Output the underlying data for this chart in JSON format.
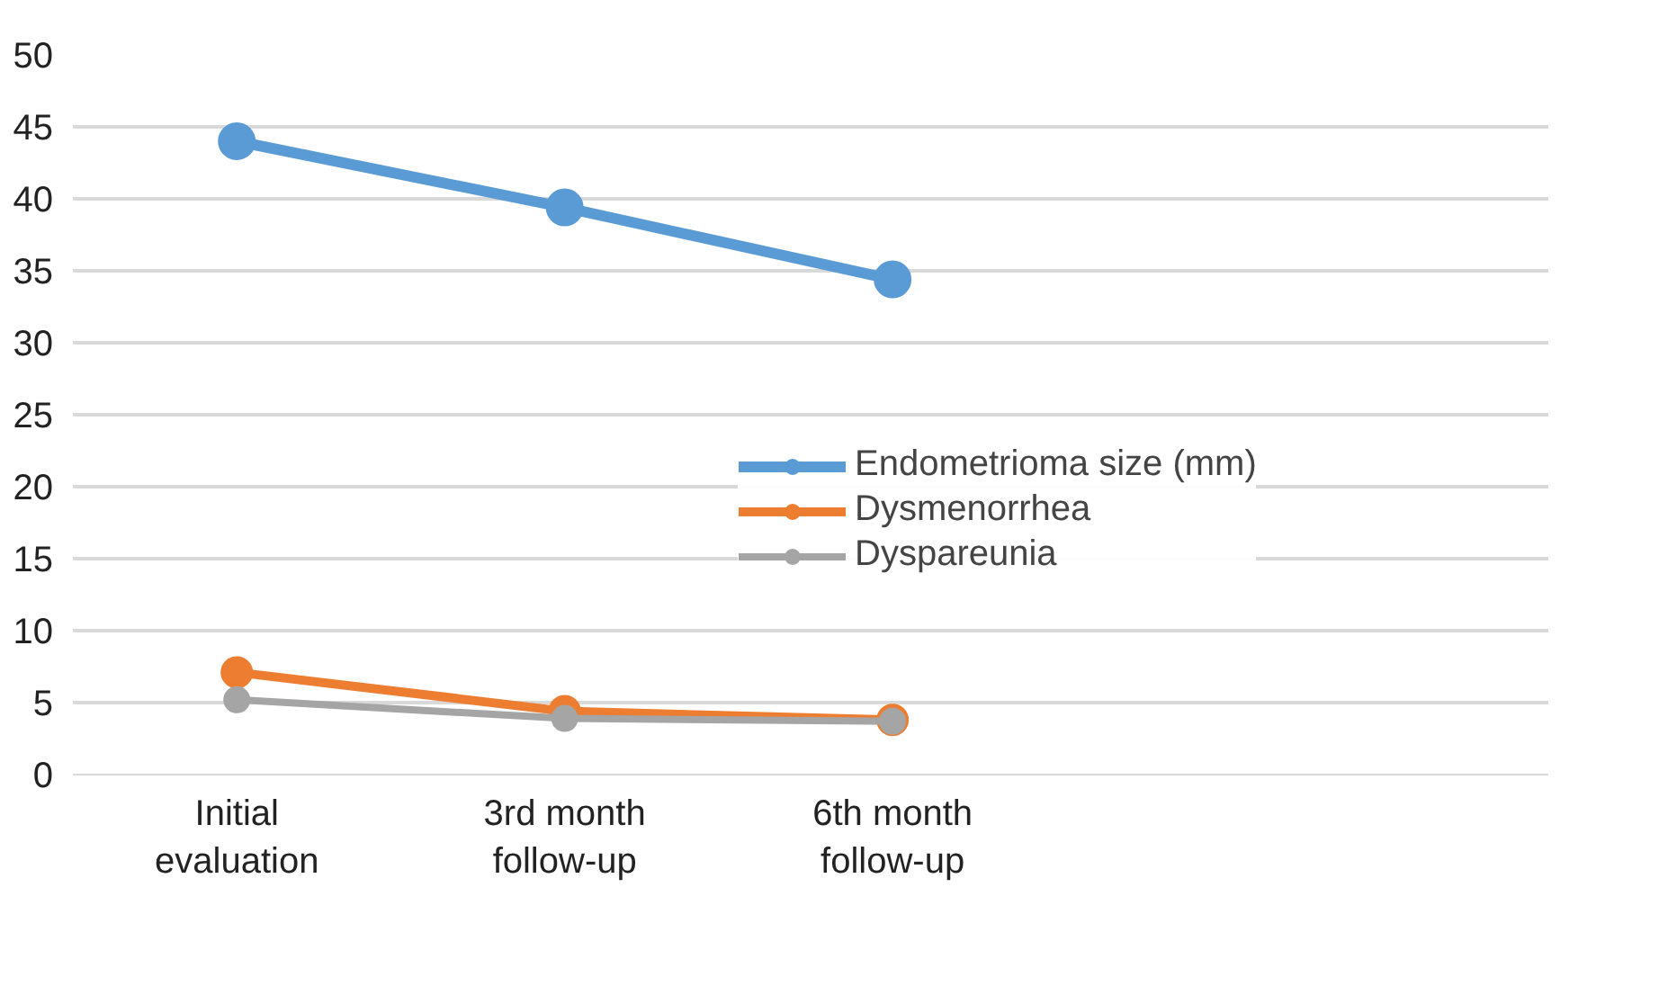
{
  "chart_data": {
    "type": "line",
    "categories": [
      "Initial evaluation",
      "3rd month follow-up",
      "6th month follow-up"
    ],
    "series": [
      {
        "name": "Endometrioma size (mm)",
        "color": "#5b9bd5",
        "values": [
          44.0,
          39.4,
          34.4
        ]
      },
      {
        "name": "Dysmenorrhea",
        "color": "#ed7d31",
        "values": [
          7.1,
          4.4,
          3.8
        ]
      },
      {
        "name": "Dyspareunia",
        "color": "#a5a5a5",
        "values": [
          5.2,
          3.9,
          3.7
        ]
      }
    ],
    "ylim": [
      0,
      50
    ],
    "yticks": [
      0,
      5,
      10,
      15,
      20,
      25,
      30,
      35,
      40,
      45,
      50
    ],
    "grid": "y",
    "legend": "right",
    "marker": "circle",
    "line_style": "solid"
  }
}
